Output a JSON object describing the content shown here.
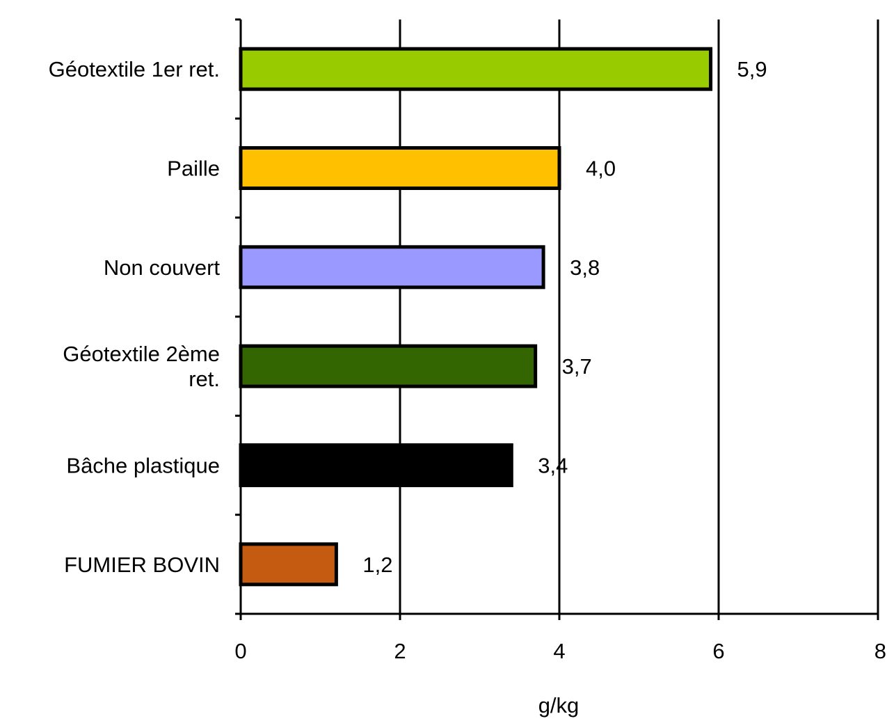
{
  "chart_data": {
    "type": "bar",
    "orientation": "horizontal",
    "categories": [
      "Géotextile 1er ret.",
      "Paille",
      "Non couvert",
      "Géotextile 2ème ret.",
      "Bâche plastique",
      "FUMIER BOVIN"
    ],
    "category_label_lines": [
      [
        "Géotextile 1er ret."
      ],
      [
        "Paille"
      ],
      [
        "Non couvert"
      ],
      [
        "Géotextile 2ème",
        "ret."
      ],
      [
        "Bâche plastique"
      ],
      [
        "FUMIER BOVIN"
      ]
    ],
    "values": [
      5.9,
      4.0,
      3.8,
      3.7,
      3.4,
      1.2
    ],
    "data_labels": [
      "5,9",
      "4,0",
      "3,8",
      "3,7",
      "3,4",
      "1,2"
    ],
    "bar_colors": [
      "#99cc00",
      "#ffc000",
      "#9999ff",
      "#336600",
      "#000000",
      "#c55a11"
    ],
    "xlim": [
      0,
      8
    ],
    "x_ticks": [
      0,
      2,
      4,
      6,
      8
    ],
    "x_tick_labels": [
      "0",
      "2",
      "4",
      "6",
      "8"
    ],
    "xlabel": "g/kg",
    "ylabel": "",
    "title": "",
    "grid": "vertical major gridlines",
    "legend": "none"
  }
}
